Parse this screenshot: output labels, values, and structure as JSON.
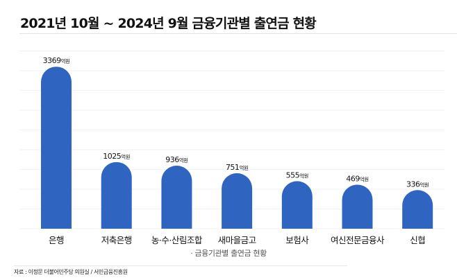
{
  "chart_data": {
    "type": "bar",
    "title": "2021년 10월 ~ 2024년 9월 금융기관별 출연금 현황",
    "categories": [
      "은행",
      "저축은행",
      "농·수·산림조합",
      "새마을금고",
      "보험사",
      "여신전문금융사",
      "신협"
    ],
    "values": [
      3369,
      1025,
      936,
      751,
      555,
      469,
      336
    ],
    "value_unit": "억원",
    "xlabel": "· 금융기관별 출연금 현황",
    "ylabel": "",
    "grid": true,
    "bar_color": "#2f64c0",
    "bar_shape": "rounded-top"
  },
  "source": "자료 : 이정문 더불어민주당 의원실 / 서민금융진흥원"
}
